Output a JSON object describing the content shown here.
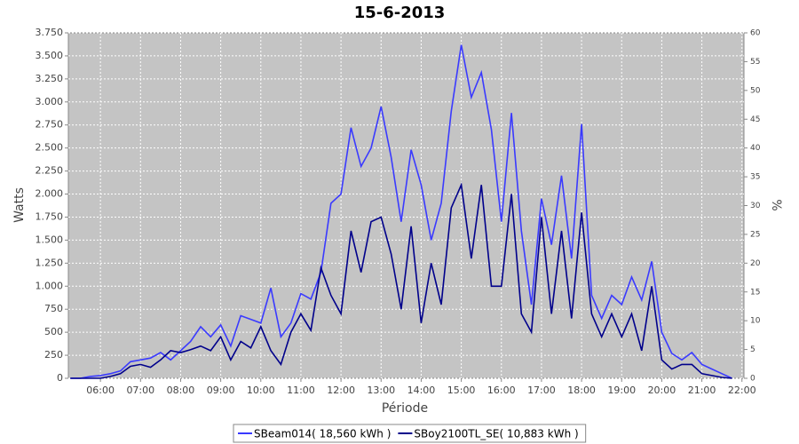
{
  "chart_data": {
    "type": "line",
    "title": "15-6-2013",
    "x_label": "Période",
    "y_label": "Watts",
    "y2_label": "%",
    "x": [
      5.25,
      5.5,
      5.75,
      6,
      6.25,
      6.5,
      6.75,
      7,
      7.25,
      7.5,
      7.75,
      8,
      8.25,
      8.5,
      8.75,
      9,
      9.25,
      9.5,
      9.75,
      10,
      10.25,
      10.5,
      10.75,
      11,
      11.25,
      11.5,
      11.75,
      12,
      12.25,
      12.5,
      12.75,
      13,
      13.25,
      13.5,
      13.75,
      14,
      14.25,
      14.5,
      14.75,
      15,
      15.25,
      15.5,
      15.75,
      16,
      16.25,
      16.5,
      16.75,
      17,
      17.25,
      17.5,
      17.75,
      18,
      18.25,
      18.5,
      18.75,
      19,
      19.25,
      19.5,
      19.75,
      20,
      20.25,
      20.5,
      20.75,
      21,
      21.25,
      21.5,
      21.75
    ],
    "series": [
      {
        "name": "SBeam014( 18,560 kWh )",
        "color": "#3a3aff",
        "values": [
          0,
          0,
          20,
          30,
          50,
          80,
          180,
          200,
          220,
          280,
          200,
          300,
          400,
          560,
          450,
          580,
          350,
          680,
          640,
          600,
          980,
          450,
          600,
          920,
          860,
          1150,
          1900,
          2000,
          2720,
          2300,
          2500,
          2950,
          2400,
          1700,
          2480,
          2100,
          1500,
          1900,
          2900,
          3620,
          3050,
          3320,
          2700,
          1700,
          2880,
          1600,
          800,
          1950,
          1450,
          2200,
          1300,
          2760,
          900,
          650,
          900,
          800,
          1100,
          850,
          1270,
          500,
          270,
          200,
          280,
          150,
          100,
          50,
          0
        ]
      },
      {
        "name": "SBoy2100TL_SE( 10,883 kWh )",
        "color": "#00008b",
        "values": [
          0,
          0,
          0,
          0,
          20,
          50,
          130,
          150,
          120,
          200,
          300,
          280,
          310,
          350,
          300,
          450,
          200,
          400,
          330,
          560,
          300,
          150,
          500,
          700,
          520,
          1200,
          900,
          700,
          1600,
          1150,
          1700,
          1750,
          1350,
          750,
          1650,
          600,
          1250,
          800,
          1850,
          2100,
          1300,
          2100,
          1000,
          1000,
          2000,
          700,
          500,
          1750,
          700,
          1600,
          650,
          1800,
          700,
          450,
          700,
          450,
          700,
          300,
          1000,
          200,
          100,
          150,
          150,
          50,
          30,
          10,
          0
        ]
      }
    ],
    "xlim": [
      5.2,
      22.05
    ],
    "xticks": [
      {
        "value": 6,
        "label": "06:00"
      },
      {
        "value": 7,
        "label": "07:00"
      },
      {
        "value": 8,
        "label": "08:00"
      },
      {
        "value": 9,
        "label": "09:00"
      },
      {
        "value": 10,
        "label": "10:00"
      },
      {
        "value": 11,
        "label": "11:00"
      },
      {
        "value": 12,
        "label": "12:00"
      },
      {
        "value": 13,
        "label": "13:00"
      },
      {
        "value": 14,
        "label": "14:00"
      },
      {
        "value": 15,
        "label": "15:00"
      },
      {
        "value": 16,
        "label": "16:00"
      },
      {
        "value": 17,
        "label": "17:00"
      },
      {
        "value": 18,
        "label": "18:00"
      },
      {
        "value": 19,
        "label": "19:00"
      },
      {
        "value": 20,
        "label": "20:00"
      },
      {
        "value": 21,
        "label": "21:00"
      },
      {
        "value": 22,
        "label": "22:00"
      }
    ],
    "ylim": [
      0,
      3750
    ],
    "yticks": [
      0,
      250,
      500,
      750,
      {
        "value": 1000,
        "label": "1.000"
      },
      {
        "value": 1250,
        "label": "1.250"
      },
      {
        "value": 1500,
        "label": "1.500"
      },
      {
        "value": 1750,
        "label": "1.750"
      },
      {
        "value": 2000,
        "label": "2.000"
      },
      {
        "value": 2250,
        "label": "2.250"
      },
      {
        "value": 2500,
        "label": "2.500"
      },
      {
        "value": 2750,
        "label": "2.750"
      },
      {
        "value": 3000,
        "label": "3.000"
      },
      {
        "value": 3250,
        "label": "3.250"
      },
      {
        "value": 3500,
        "label": "3.500"
      },
      {
        "value": 3750,
        "label": "3.750"
      }
    ],
    "y2lim": [
      0,
      60
    ],
    "y2ticks": [
      0,
      5,
      10,
      15,
      20,
      25,
      30,
      35,
      40,
      45,
      50,
      55,
      60
    ],
    "grid": true,
    "legend": "bottom",
    "plot_background": "#c4c4c4"
  }
}
